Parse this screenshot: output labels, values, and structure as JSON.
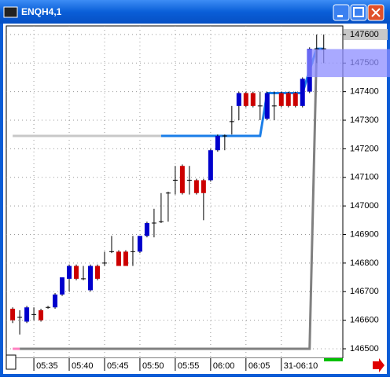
{
  "window_title": "ENQH4,1",
  "chart_data": {
    "type": "candlestick",
    "open": [
      146640,
      146610,
      146595,
      146620,
      146635,
      146645,
      146645,
      146690,
      146745,
      146790,
      146745,
      146705,
      146790,
      146800,
      146840,
      146840,
      146840,
      146840,
      146840,
      146895,
      146940,
      146945,
      147045,
      147090,
      147140,
      147090,
      147090,
      147090,
      147090,
      147195,
      147245,
      147295,
      147350,
      147395,
      147395,
      147350,
      147305,
      147350,
      147395,
      147395,
      147395,
      147350,
      147400,
      147550,
      147550
    ],
    "high": [
      146645,
      146635,
      146650,
      146645,
      146640,
      146650,
      146695,
      146750,
      146795,
      146795,
      146790,
      146795,
      146795,
      146840,
      146895,
      146845,
      146845,
      146895,
      146895,
      146945,
      146990,
      147045,
      147050,
      147140,
      147145,
      147140,
      147095,
      147095,
      147200,
      147250,
      147250,
      147350,
      147400,
      147400,
      147400,
      147400,
      147400,
      147400,
      147400,
      147400,
      147400,
      147450,
      147555,
      147600,
      147600
    ],
    "low": [
      146590,
      146550,
      146590,
      146600,
      146595,
      146640,
      146640,
      146685,
      146700,
      146740,
      146740,
      146700,
      146740,
      146790,
      146835,
      146790,
      146790,
      146790,
      146835,
      146890,
      146890,
      146940,
      146945,
      147040,
      147040,
      147040,
      147040,
      146950,
      147085,
      147190,
      147195,
      147250,
      147300,
      147345,
      147345,
      147300,
      147300,
      147300,
      147345,
      147345,
      147345,
      147345,
      147395,
      147500,
      147500
    ],
    "close": [
      146600,
      146610,
      146645,
      146620,
      146600,
      146645,
      146690,
      146750,
      146790,
      146745,
      146745,
      146790,
      146745,
      146800,
      146840,
      146790,
      146790,
      146840,
      146895,
      146940,
      146940,
      146945,
      147045,
      147090,
      147045,
      147090,
      147045,
      147045,
      147195,
      147245,
      147245,
      147295,
      147395,
      147350,
      147350,
      147350,
      147395,
      147350,
      147350,
      147350,
      147350,
      147445,
      147550,
      147550,
      147550
    ],
    "up_color": "#0000cc",
    "down_color": "#cc0000",
    "doji_color": "#000000",
    "series": [
      {
        "color": "#c8c8c8",
        "width": 3,
        "values": [
          147245,
          147245,
          147245,
          147245,
          147245,
          147245,
          147245,
          147245,
          147245,
          147245,
          147245,
          147245,
          147245,
          147245,
          147245,
          147245,
          147245,
          147245,
          147245,
          147245,
          147245,
          147245,
          null,
          null,
          null,
          null,
          null,
          null,
          null,
          null,
          null,
          null,
          null,
          null,
          null,
          null,
          null,
          null,
          null,
          null,
          null,
          null,
          null,
          null,
          null
        ]
      },
      {
        "color": "#1a7ee8",
        "width": 3,
        "values": [
          null,
          null,
          null,
          null,
          null,
          null,
          null,
          null,
          null,
          null,
          null,
          null,
          null,
          null,
          null,
          null,
          null,
          null,
          null,
          null,
          null,
          147245,
          147245,
          147245,
          147245,
          147245,
          147245,
          147245,
          147245,
          147245,
          147245,
          147245,
          147245,
          147245,
          147245,
          147245,
          147395,
          147395,
          147395,
          147395,
          147395,
          147395,
          147475,
          147550,
          147550
        ]
      },
      {
        "color": "#808080",
        "width": 3,
        "values": [
          null,
          146500,
          146500,
          146500,
          146500,
          146500,
          146500,
          146500,
          146500,
          146500,
          146500,
          146500,
          146500,
          146500,
          146500,
          146500,
          146500,
          146500,
          146500,
          146500,
          146500,
          146500,
          146500,
          146500,
          146500,
          146500,
          146500,
          146500,
          146500,
          146500,
          146500,
          146500,
          146500,
          146500,
          146500,
          146500,
          146500,
          146500,
          146500,
          146500,
          146500,
          146500,
          146500,
          147550,
          null
        ]
      },
      {
        "color": "#ff80c0",
        "width": 3,
        "values": [
          146500,
          146500,
          null,
          null,
          null,
          null,
          null,
          null,
          null,
          null,
          null,
          null,
          null,
          null,
          null,
          null,
          null,
          null,
          null,
          null,
          null,
          null,
          null,
          null,
          null,
          null,
          null,
          null,
          null,
          null,
          null,
          null,
          null,
          null,
          null,
          null,
          null,
          null,
          null,
          null,
          null,
          null,
          null,
          null,
          null
        ]
      }
    ],
    "zone": {
      "ymin": 147451,
      "ymax": 147549,
      "color": "#8c8cff"
    },
    "xlim": [
      -0.9,
      46.7
    ],
    "xticks": [
      {
        "value": 3,
        "label": "05:35"
      },
      {
        "value": 8,
        "label": "05:40"
      },
      {
        "value": 13,
        "label": "05:45"
      },
      {
        "value": 18,
        "label": "05:50"
      },
      {
        "value": 23,
        "label": "05:55"
      },
      {
        "value": 28,
        "label": "06:00"
      },
      {
        "value": 33,
        "label": "06:05"
      },
      {
        "value": 38,
        "label": "31-06:10"
      }
    ],
    "ylim": [
      146467,
      147630
    ],
    "yticks": [
      147600,
      147500,
      147400,
      147300,
      147200,
      147100,
      147000,
      146900,
      146800,
      146700,
      146600,
      146500
    ],
    "grid": true
  }
}
